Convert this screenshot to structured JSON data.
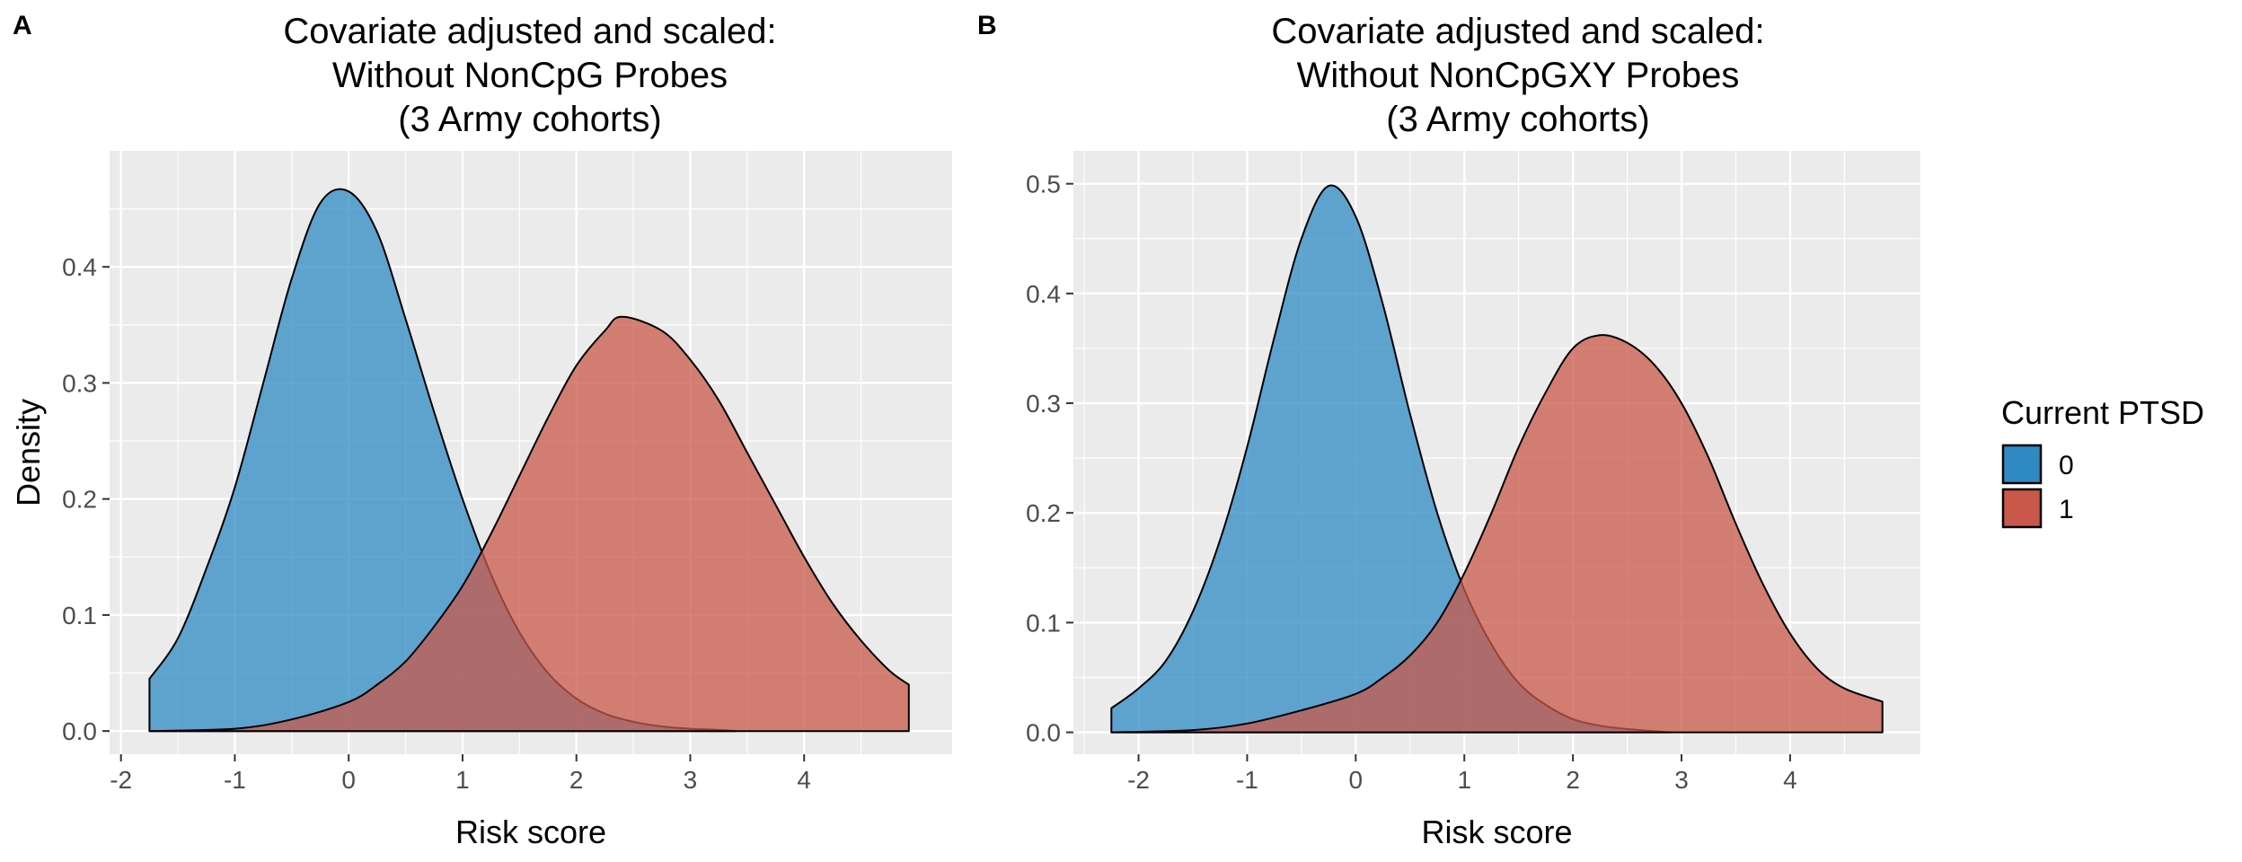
{
  "chart_data": [
    {
      "panel_label": "A",
      "type": "area",
      "title_lines": [
        "Covariate adjusted and scaled:",
        "Without NonCpG Probes",
        "(3 Army cohorts)"
      ],
      "xlabel": "Risk score",
      "ylabel": "Density",
      "xlim": [
        -2.1,
        5.3
      ],
      "ylim": [
        -0.02,
        0.5
      ],
      "x_ticks": [
        -2,
        -1,
        0,
        1,
        2,
        3,
        4
      ],
      "y_ticks": [
        0.0,
        0.1,
        0.2,
        0.3,
        0.4
      ],
      "y_tick_labels": [
        "0.0",
        "0.1",
        "0.2",
        "0.3",
        "0.4"
      ],
      "grid": true,
      "series": [
        {
          "name": "0",
          "color": "#2f8ac4",
          "x": [
            -1.75,
            -1.5,
            -1.25,
            -1.0,
            -0.75,
            -0.5,
            -0.25,
            0.0,
            0.25,
            0.5,
            0.75,
            1.0,
            1.25,
            1.5,
            1.75,
            2.0,
            2.25,
            2.5,
            2.75,
            3.0,
            3.25,
            3.4
          ],
          "y": [
            0.045,
            0.08,
            0.14,
            0.21,
            0.3,
            0.39,
            0.455,
            0.465,
            0.43,
            0.355,
            0.275,
            0.2,
            0.135,
            0.085,
            0.05,
            0.028,
            0.015,
            0.008,
            0.004,
            0.002,
            0.001,
            0.0
          ]
        },
        {
          "name": "1",
          "color": "#c9584a",
          "x": [
            -1.75,
            -1.0,
            -0.5,
            0.0,
            0.25,
            0.5,
            0.75,
            1.0,
            1.25,
            1.5,
            1.75,
            2.0,
            2.25,
            2.4,
            2.75,
            3.0,
            3.25,
            3.5,
            3.75,
            4.0,
            4.25,
            4.5,
            4.75,
            4.92
          ],
          "y": [
            0.0,
            0.002,
            0.01,
            0.025,
            0.04,
            0.06,
            0.09,
            0.125,
            0.17,
            0.22,
            0.27,
            0.315,
            0.345,
            0.357,
            0.345,
            0.32,
            0.285,
            0.24,
            0.195,
            0.15,
            0.11,
            0.078,
            0.052,
            0.04
          ]
        }
      ]
    },
    {
      "panel_label": "B",
      "type": "area",
      "title_lines": [
        "Covariate adjusted and scaled:",
        "Without NonCpGXY Probes",
        "(3 Army cohorts)"
      ],
      "xlabel": "Risk score",
      "ylabel": "",
      "xlim": [
        -2.6,
        5.2
      ],
      "ylim": [
        -0.02,
        0.53
      ],
      "x_ticks": [
        -2,
        -1,
        0,
        1,
        2,
        3,
        4
      ],
      "y_ticks": [
        0.0,
        0.1,
        0.2,
        0.3,
        0.4,
        0.5
      ],
      "y_tick_labels": [
        "0.0",
        "0.1",
        "0.2",
        "0.3",
        "0.4",
        "0.5"
      ],
      "grid": true,
      "series": [
        {
          "name": "0",
          "color": "#2f8ac4",
          "x": [
            -2.25,
            -2.0,
            -1.75,
            -1.5,
            -1.25,
            -1.0,
            -0.75,
            -0.5,
            -0.25,
            0.0,
            0.25,
            0.5,
            0.75,
            1.0,
            1.25,
            1.5,
            1.75,
            2.0,
            2.25,
            2.5,
            2.75,
            2.9
          ],
          "y": [
            0.022,
            0.04,
            0.065,
            0.11,
            0.175,
            0.26,
            0.36,
            0.45,
            0.498,
            0.47,
            0.39,
            0.29,
            0.2,
            0.13,
            0.08,
            0.045,
            0.025,
            0.012,
            0.006,
            0.003,
            0.001,
            0.0
          ]
        },
        {
          "name": "1",
          "color": "#c9584a",
          "x": [
            -2.25,
            -1.5,
            -1.0,
            -0.5,
            0.0,
            0.25,
            0.5,
            0.75,
            1.0,
            1.25,
            1.5,
            1.75,
            2.0,
            2.25,
            2.5,
            2.75,
            3.0,
            3.25,
            3.5,
            3.75,
            4.0,
            4.25,
            4.5,
            4.85
          ],
          "y": [
            0.0,
            0.002,
            0.008,
            0.02,
            0.035,
            0.05,
            0.07,
            0.1,
            0.145,
            0.2,
            0.26,
            0.31,
            0.35,
            0.362,
            0.355,
            0.335,
            0.3,
            0.25,
            0.19,
            0.135,
            0.09,
            0.058,
            0.04,
            0.028
          ]
        }
      ]
    }
  ],
  "legend": {
    "title": "Current PTSD",
    "items": [
      {
        "label": "0",
        "color": "#2f8ac4"
      },
      {
        "label": "1",
        "color": "#c9584a"
      }
    ]
  },
  "colors": {
    "panel_bg": "#ebebeb",
    "grid": "#ffffff",
    "outline": "#000000",
    "tick_text": "#4d4d4d"
  }
}
